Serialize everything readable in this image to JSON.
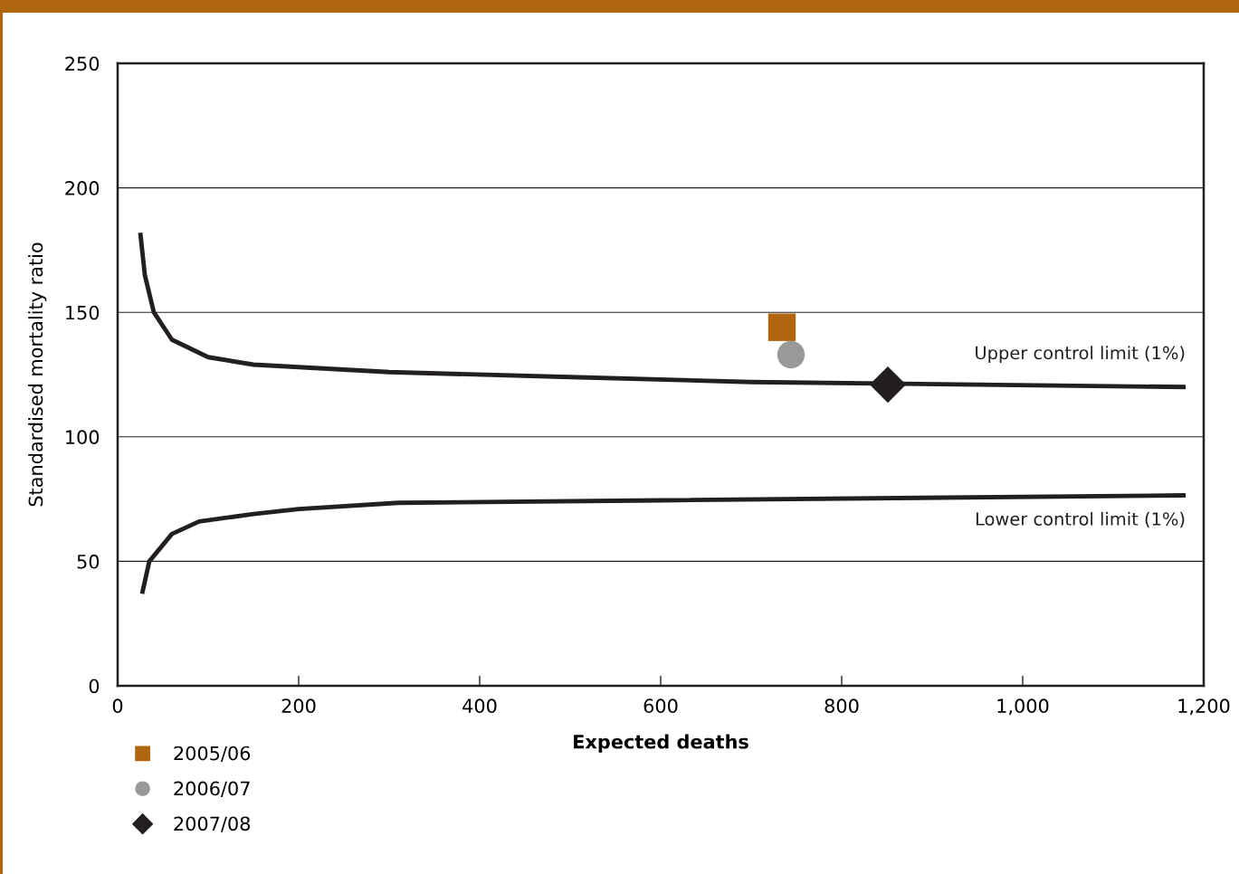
{
  "chart_data": {
    "type": "scatter",
    "xlabel": "Expected deaths",
    "ylabel": "Standardised mortality ratio",
    "xlim": [
      0,
      1200
    ],
    "ylim": [
      0,
      250
    ],
    "xticks": [
      0,
      200,
      400,
      600,
      800,
      {
        "value": 1000,
        "label": "1,000"
      },
      {
        "value": 1200,
        "label": "1,200"
      }
    ],
    "yticks": [
      0,
      50,
      100,
      150,
      200,
      250
    ],
    "grid": "y",
    "legend": "bottom left",
    "series": [
      {
        "type": "line",
        "color": "#231f20",
        "marker": "none",
        "line_style": "solid",
        "x": [
          25,
          30,
          40,
          60,
          100,
          150,
          300,
          500,
          700,
          1180
        ],
        "values": [
          182,
          165,
          150,
          139,
          132,
          129,
          126,
          124,
          122,
          120
        ]
      },
      {
        "type": "line",
        "color": "#231f20",
        "marker": "none",
        "line_style": "solid",
        "x": [
          27,
          35,
          60,
          90,
          150,
          200,
          310,
          600,
          1180
        ],
        "values": [
          37,
          50,
          61,
          66,
          69,
          71,
          73.5,
          74.5,
          76.5
        ]
      },
      {
        "name": "2005/06",
        "color": "#b0650f",
        "marker": "square",
        "x": [
          734
        ],
        "values": [
          144
        ]
      },
      {
        "name": "2006/07",
        "color": "#999999",
        "marker": "circle",
        "x": [
          744
        ],
        "values": [
          133
        ]
      },
      {
        "name": "2007/08",
        "color": "#231f20",
        "marker": "diamond",
        "x": [
          851
        ],
        "values": [
          121
        ]
      }
    ],
    "annotations": [
      {
        "text": "Upper control limit (1%)",
        "x": 1180,
        "y": 120
      },
      {
        "text": "Lower control limit (1%)",
        "x": 1180,
        "y": 76.5
      }
    ]
  }
}
